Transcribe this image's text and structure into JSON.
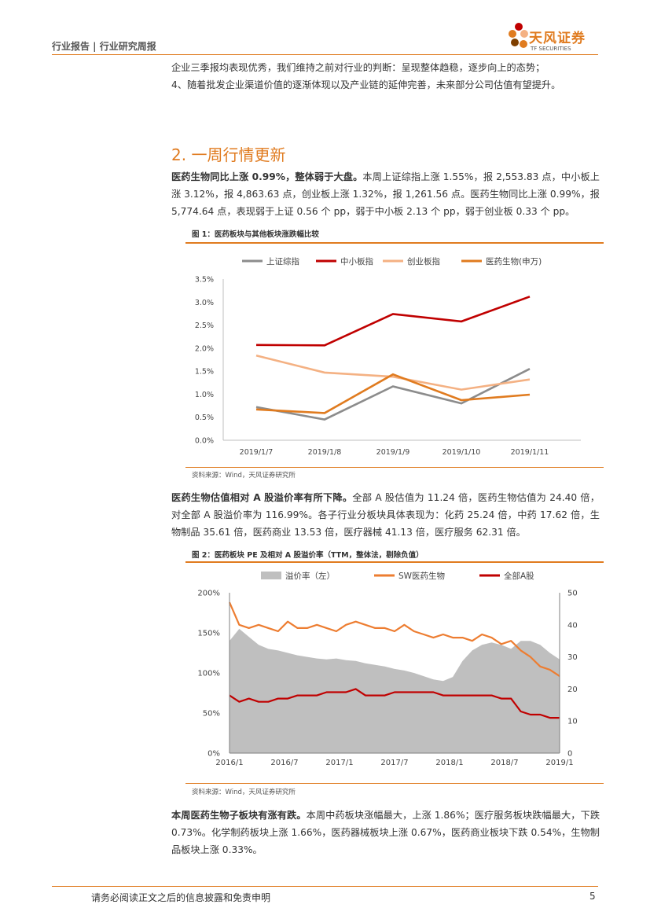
{
  "header": {
    "left": "行业报告 | 行业研究周报",
    "logo_cn": "天风证券",
    "logo_en": "TF SECURITIES"
  },
  "intro": {
    "line1": "企业三季报均表现优秀，我们维持之前对行业的判断：呈现整体趋稳，逐步向上的态势；",
    "line2": "4、随着批发企业渠道价值的逐渐体现以及产业链的延伸完善，未来部分公司估值有望提升。"
  },
  "section": {
    "title": "2. 一周行情更新"
  },
  "para1": {
    "bold": "医药生物同比上涨 0.99%，整体弱于大盘。",
    "text": "本周上证综指上涨 1.55%，报 2,553.83 点，中小板上涨 3.12%，报 4,863.63 点，创业板上涨 1.32%，报 1,261.56 点。医药生物同比上涨 0.99%，报 5,774.64 点，表现弱于上证 0.56 个 pp，弱于中小板 2.13 个 pp，弱于创业板 0.33 个 pp。"
  },
  "figure1": {
    "title": "图 1：医药板块与其他板块涨跌幅比较",
    "source": "资料来源：Wind，天风证券研究所"
  },
  "para2": {
    "bold": "医药生物估值相对 A 股溢价率有所下降。",
    "text": "全部 A 股估值为 11.24 倍，医药生物估值为 24.40 倍，对全部 A 股溢价率为 116.99%。各子行业分板块具体表现为：化药 25.24 倍，中药 17.62 倍，生物制品 35.61 倍，医药商业 13.53 倍，医疗器械 41.13 倍，医疗服务 62.31 倍。"
  },
  "figure2": {
    "title": "图 2：医药板块 PE 及相对 A 股溢价率（TTM，整体法，剔除负值）",
    "source": "资料来源：Wind，天风证券研究所"
  },
  "para3": {
    "bold": "本周医药生物子板块有涨有跌。",
    "text": "本周中药板块涨幅最大，上涨 1.86%；医疗服务板块跌幅最大，下跌 0.73%。化学制药板块上涨 1.66%，医药器械板块上涨 0.67%，医药商业板块下跌 0.54%，生物制品板块上涨 0.33%。"
  },
  "footer": {
    "disclaimer": "请务必阅读正文之后的信息披露和免责申明",
    "page": "5"
  },
  "chart_data": [
    {
      "type": "line",
      "categories": [
        "2019/1/7",
        "2019/1/8",
        "2019/1/9",
        "2019/1/10",
        "2019/1/11"
      ],
      "series": [
        {
          "name": "上证综指",
          "color": "#8c8c8c",
          "values": [
            0.72,
            0.45,
            1.17,
            0.8,
            1.55
          ]
        },
        {
          "name": "中小板指",
          "color": "#c00000",
          "values": [
            2.07,
            2.06,
            2.74,
            2.58,
            3.12
          ]
        },
        {
          "name": "创业板指",
          "color": "#f4b183",
          "values": [
            1.84,
            1.47,
            1.38,
            1.1,
            1.32
          ]
        },
        {
          "name": "医药生物(申万)",
          "color": "#e07b1f",
          "values": [
            0.67,
            0.59,
            1.43,
            0.87,
            0.99
          ]
        }
      ],
      "ylim": [
        0,
        3.5
      ],
      "yticks": [
        "0.0%",
        "0.5%",
        "1.0%",
        "1.5%",
        "2.0%",
        "2.5%",
        "3.0%",
        "3.5%"
      ]
    },
    {
      "type": "area",
      "x_ticks": [
        "2016/1",
        "2016/7",
        "2017/1",
        "2017/7",
        "2018/1",
        "2018/7",
        "2019/1"
      ],
      "left_axis": [
        "0%",
        "50%",
        "100%",
        "150%",
        "200%"
      ],
      "right_axis": [
        "0",
        "10",
        "20",
        "30",
        "40",
        "50"
      ],
      "left_ylim": [
        0,
        200
      ],
      "right_ylim": [
        0,
        50
      ],
      "series": [
        {
          "name": "溢价率（左）",
          "color": "#bfbfbf",
          "axis": "left",
          "values": [
            140,
            155,
            145,
            135,
            130,
            128,
            125,
            122,
            120,
            118,
            117,
            118,
            116,
            115,
            112,
            110,
            108,
            105,
            103,
            100,
            96,
            92,
            90,
            95,
            115,
            128,
            135,
            138,
            135,
            130,
            140,
            140,
            135,
            125,
            117
          ]
        },
        {
          "name": "SW医药生物",
          "color": "#ed7d31",
          "axis": "right",
          "values": [
            47,
            40,
            39,
            40,
            39,
            38,
            41,
            39,
            39,
            40,
            39,
            38,
            40,
            41,
            40,
            39,
            39,
            38,
            40,
            38,
            37,
            36,
            37,
            36,
            36,
            35,
            37,
            36,
            34,
            35,
            32,
            30,
            27,
            26,
            24
          ]
        },
        {
          "name": "全部A股",
          "color": "#c00000",
          "axis": "right",
          "values": [
            18,
            16,
            17,
            16,
            16,
            17,
            17,
            18,
            18,
            18,
            19,
            19,
            19,
            20,
            18,
            18,
            18,
            19,
            19,
            19,
            19,
            19,
            18,
            18,
            18,
            18,
            18,
            18,
            17,
            17,
            13,
            12,
            12,
            11,
            11
          ]
        }
      ]
    }
  ]
}
